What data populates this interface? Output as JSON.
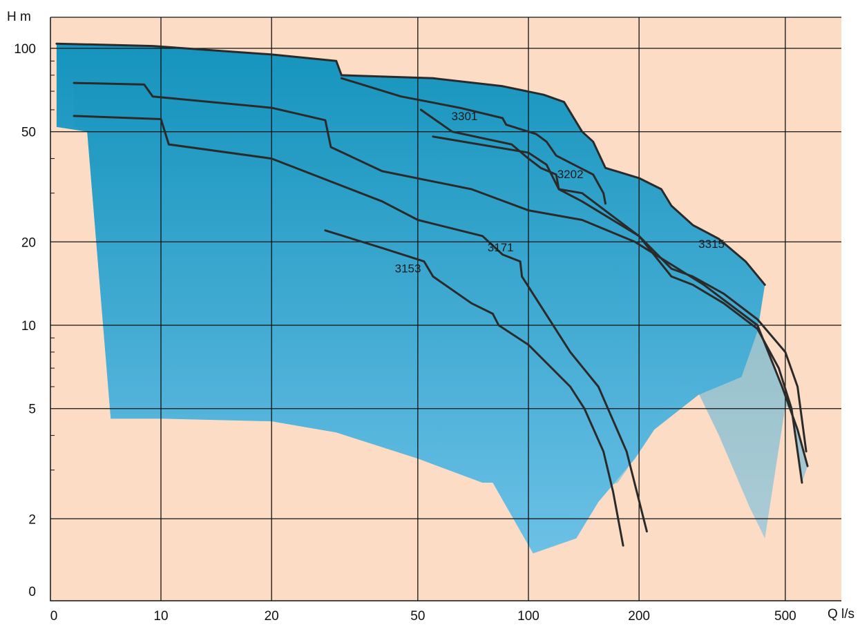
{
  "chart_data": {
    "type": "area",
    "xlabel": "Q l/s",
    "ylabel": "H m",
    "x_scale": "log",
    "y_scale": "log",
    "grid": true,
    "colors": {
      "background": "#fcdcc4",
      "region_dark": "#1594bd",
      "region_light": "#6cc0e6",
      "curve_line": "#2a2a2a",
      "grid_line": "#111111"
    },
    "x_ticks": [
      {
        "value": 0,
        "label": "0"
      },
      {
        "value": 10,
        "label": "10"
      },
      {
        "value": 20,
        "label": "20"
      },
      {
        "value": 50,
        "label": "50"
      },
      {
        "value": 100,
        "label": "100"
      },
      {
        "value": 200,
        "label": "200"
      },
      {
        "value": 500,
        "label": "500"
      }
    ],
    "y_ticks": [
      {
        "value": 0,
        "label": "0"
      },
      {
        "value": 2,
        "label": "2"
      },
      {
        "value": 5,
        "label": "5"
      },
      {
        "value": 10,
        "label": "10"
      },
      {
        "value": 20,
        "label": "20"
      },
      {
        "value": 50,
        "label": "50"
      },
      {
        "value": 100,
        "label": "100"
      }
    ],
    "regions": [
      {
        "name": "3153",
        "boundary": [
          [
            5.2,
            104
          ],
          [
            9.5,
            102
          ],
          [
            20,
            95
          ],
          [
            30,
            90
          ],
          [
            31,
            80
          ],
          [
            55,
            78
          ],
          [
            85,
            73
          ],
          [
            110,
            68
          ],
          [
            125,
            64
          ],
          [
            140,
            50
          ],
          [
            150,
            46
          ],
          [
            162,
            37
          ],
          [
            200,
            34
          ],
          [
            230,
            31
          ],
          [
            245,
            27
          ],
          [
            280,
            23
          ],
          [
            330,
            20.5
          ],
          [
            390,
            17
          ],
          [
            440,
            14
          ],
          [
            420,
            9.5
          ],
          [
            380,
            6.5
          ],
          [
            290,
            5.6
          ],
          [
            220,
            4.2
          ],
          [
            195,
            3.3
          ],
          [
            155,
            2.3
          ],
          [
            135,
            1.7
          ],
          [
            103,
            1.5
          ],
          [
            80,
            2.7
          ],
          [
            75,
            2.7
          ],
          [
            50,
            3.3
          ],
          [
            30,
            4.1
          ],
          [
            20,
            4.5
          ],
          [
            10,
            4.6
          ],
          [
            7.3,
            4.6
          ],
          [
            6.3,
            50
          ],
          [
            5.2,
            52
          ]
        ]
      },
      {
        "name": "3171",
        "boundary": [
          [
            5.8,
            75
          ],
          [
            9,
            74
          ],
          [
            9.5,
            67
          ],
          [
            20,
            61
          ],
          [
            28,
            55
          ],
          [
            29,
            44
          ],
          [
            40,
            36
          ],
          [
            70,
            31
          ],
          [
            100,
            26
          ],
          [
            140,
            24
          ],
          [
            195,
            20
          ],
          [
            300,
            14
          ],
          [
            420,
            10
          ],
          [
            490,
            6
          ],
          [
            540,
            4.2
          ],
          [
            575,
            3.1
          ],
          [
            555,
            2.7
          ],
          [
            520,
            5
          ],
          [
            500,
            5.1
          ],
          [
            440,
            1.7
          ],
          [
            400,
            2.2
          ],
          [
            330,
            4
          ],
          [
            290,
            5.7
          ],
          [
            270,
            6.2
          ],
          [
            220,
            4.5
          ],
          [
            200,
            3.6
          ],
          [
            185,
            3
          ],
          [
            175,
            2.7
          ],
          [
            150,
            2.5
          ],
          [
            130,
            2
          ],
          [
            103,
            1.5
          ],
          [
            80,
            2.7
          ],
          [
            75,
            2.7
          ],
          [
            50,
            3.3
          ],
          [
            30,
            4.1
          ],
          [
            20,
            4.5
          ],
          [
            10,
            4.6
          ],
          [
            7.3,
            4.6
          ],
          [
            6.3,
            50
          ],
          [
            5.8,
            52
          ]
        ]
      }
    ],
    "series": [
      {
        "name": "3315",
        "points": [
          [
            5.2,
            104
          ],
          [
            9.5,
            102
          ],
          [
            20,
            95
          ],
          [
            30,
            90
          ],
          [
            31,
            80
          ],
          [
            55,
            78
          ],
          [
            85,
            73
          ],
          [
            110,
            68
          ],
          [
            125,
            64
          ],
          [
            140,
            50
          ],
          [
            150,
            46
          ],
          [
            162,
            37
          ],
          [
            200,
            34
          ],
          [
            230,
            31
          ],
          [
            245,
            27
          ],
          [
            280,
            23
          ],
          [
            330,
            20.5
          ],
          [
            390,
            17
          ],
          [
            440,
            14
          ]
        ]
      },
      {
        "name": "3301",
        "points": [
          [
            31,
            78
          ],
          [
            45,
            67
          ],
          [
            65,
            61
          ],
          [
            85,
            56
          ],
          [
            87,
            53
          ],
          [
            105,
            49
          ],
          [
            112,
            46
          ],
          [
            119,
            41
          ],
          [
            150,
            35
          ],
          [
            160,
            30
          ],
          [
            162,
            27.5
          ]
        ]
      },
      {
        "name": "3202",
        "points": [
          [
            5.8,
            75
          ],
          [
            9,
            74
          ],
          [
            9.5,
            67
          ],
          [
            20,
            61
          ],
          [
            28,
            55
          ],
          [
            29,
            44
          ],
          [
            40,
            36
          ],
          [
            70,
            31
          ],
          [
            100,
            26
          ],
          [
            140,
            24
          ],
          [
            195,
            20
          ],
          [
            300,
            14
          ],
          [
            420,
            10
          ],
          [
            490,
            6
          ],
          [
            540,
            4.2
          ],
          [
            575,
            3.1
          ]
        ]
      },
      {
        "name": "",
        "points": [
          [
            51,
            60
          ],
          [
            62,
            50
          ],
          [
            90,
            45
          ],
          [
            100,
            40
          ],
          [
            108,
            37
          ],
          [
            119,
            35
          ],
          [
            121,
            31
          ],
          [
            140,
            28
          ],
          [
            200,
            21
          ],
          [
            245,
            16
          ],
          [
            280,
            15
          ],
          [
            340,
            13
          ],
          [
            420,
            10.5
          ],
          [
            500,
            8
          ],
          [
            540,
            6
          ],
          [
            570,
            3.5
          ]
        ]
      },
      {
        "name": "",
        "points": [
          [
            55,
            48
          ],
          [
            100,
            42
          ],
          [
            112,
            38
          ],
          [
            121,
            31
          ],
          [
            140,
            30
          ],
          [
            200,
            21
          ],
          [
            245,
            15
          ],
          [
            280,
            14
          ],
          [
            340,
            12
          ],
          [
            420,
            9.7
          ],
          [
            480,
            7
          ],
          [
            520,
            5
          ],
          [
            555,
            2.7
          ]
        ]
      },
      {
        "name": "3171",
        "points": [
          [
            5.8,
            57
          ],
          [
            10,
            55.5
          ],
          [
            10.5,
            45
          ],
          [
            20,
            40
          ],
          [
            40,
            28
          ],
          [
            50,
            24
          ],
          [
            75,
            21
          ],
          [
            85,
            18
          ],
          [
            95,
            17
          ],
          [
            96,
            15
          ],
          [
            130,
            8
          ],
          [
            155,
            6
          ],
          [
            185,
            3.5
          ],
          [
            210,
            1.8
          ]
        ]
      },
      {
        "name": "3153",
        "points": [
          [
            28,
            22
          ],
          [
            40,
            19
          ],
          [
            52,
            17
          ],
          [
            55,
            15
          ],
          [
            70,
            12
          ],
          [
            80,
            11
          ],
          [
            83,
            10
          ],
          [
            100,
            8.5
          ],
          [
            130,
            6
          ],
          [
            142,
            5
          ],
          [
            160,
            3.5
          ],
          [
            170,
            2.5
          ],
          [
            181,
            1.6
          ]
        ]
      }
    ],
    "labels": [
      {
        "text": "3301",
        "x": 67,
        "y": 55
      },
      {
        "text": "3202",
        "x": 130,
        "y": 34
      },
      {
        "text": "3315",
        "x": 315,
        "y": 19
      },
      {
        "text": "3171",
        "x": 84,
        "y": 18.5
      },
      {
        "text": "3153",
        "x": 47,
        "y": 15.5
      }
    ]
  }
}
